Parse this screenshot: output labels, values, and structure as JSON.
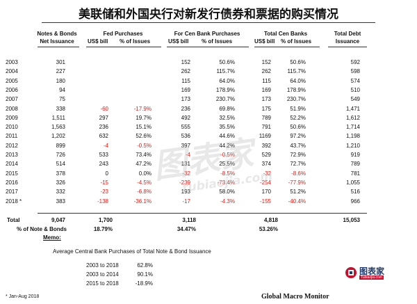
{
  "title": "美联储和外国央行对新发行债券和票据的购买情况",
  "headers": {
    "notes_bonds": "Notes & Bonds",
    "net_issuance": "Net Issuance",
    "fed_purchases": "Fed Purchases",
    "cb_purchases": "For Cen Bank Purchases",
    "total_cb": "Total Cen Banks",
    "total_debt": "Total Debt",
    "issuance": "Issuance",
    "usd_bill": "US$ bill",
    "pct_issues": "% of Issues"
  },
  "rows": [
    {
      "year": "2003",
      "net": "301",
      "fed_b": "",
      "fed_p": "",
      "cb_b": "152",
      "cb_p": "50.6%",
      "tot_b": "152",
      "tot_p": "50.6%",
      "debt": "592",
      "fed_neg": false,
      "cb_neg": false,
      "tot_neg": false
    },
    {
      "year": "2004",
      "net": "227",
      "fed_b": "",
      "fed_p": "",
      "cb_b": "262",
      "cb_p": "115.7%",
      "tot_b": "262",
      "tot_p": "115.7%",
      "debt": "598",
      "fed_neg": false,
      "cb_neg": false,
      "tot_neg": false
    },
    {
      "year": "2005",
      "net": "180",
      "fed_b": "",
      "fed_p": "",
      "cb_b": "115",
      "cb_p": "64.0%",
      "tot_b": "115",
      "tot_p": "64.0%",
      "debt": "574",
      "fed_neg": false,
      "cb_neg": false,
      "tot_neg": false
    },
    {
      "year": "2006",
      "net": "94",
      "fed_b": "",
      "fed_p": "",
      "cb_b": "169",
      "cb_p": "178.9%",
      "tot_b": "169",
      "tot_p": "178.9%",
      "debt": "510",
      "fed_neg": false,
      "cb_neg": false,
      "tot_neg": false
    },
    {
      "year": "2007",
      "net": "75",
      "fed_b": "",
      "fed_p": "",
      "cb_b": "173",
      "cb_p": "230.7%",
      "tot_b": "173",
      "tot_p": "230.7%",
      "debt": "549",
      "fed_neg": false,
      "cb_neg": false,
      "tot_neg": false
    },
    {
      "year": "2008",
      "net": "338",
      "fed_b": "-60",
      "fed_p": "-17.9%",
      "cb_b": "236",
      "cb_p": "69.8%",
      "tot_b": "175",
      "tot_p": "51.9%",
      "debt": "1,471",
      "fed_neg": true,
      "cb_neg": false,
      "tot_neg": false
    },
    {
      "year": "2009",
      "net": "1,511",
      "fed_b": "297",
      "fed_p": "19.7%",
      "cb_b": "492",
      "cb_p": "32.5%",
      "tot_b": "789",
      "tot_p": "52.2%",
      "debt": "1,612",
      "fed_neg": false,
      "cb_neg": false,
      "tot_neg": false
    },
    {
      "year": "2010",
      "net": "1,563",
      "fed_b": "236",
      "fed_p": "15.1%",
      "cb_b": "555",
      "cb_p": "35.5%",
      "tot_b": "791",
      "tot_p": "50.6%",
      "debt": "1,714",
      "fed_neg": false,
      "cb_neg": false,
      "tot_neg": false
    },
    {
      "year": "2011",
      "net": "1,202",
      "fed_b": "632",
      "fed_p": "52.6%",
      "cb_b": "536",
      "cb_p": "44.6%",
      "tot_b": "1169",
      "tot_p": "97.2%",
      "debt": "1,198",
      "fed_neg": false,
      "cb_neg": false,
      "tot_neg": false
    },
    {
      "year": "2012",
      "net": "899",
      "fed_b": "-4",
      "fed_p": "-0.5%",
      "cb_b": "397",
      "cb_p": "44.2%",
      "tot_b": "392",
      "tot_p": "43.7%",
      "debt": "1,210",
      "fed_neg": true,
      "cb_neg": false,
      "tot_neg": false
    },
    {
      "year": "2013",
      "net": "726",
      "fed_b": "533",
      "fed_p": "73.4%",
      "cb_b": "-4",
      "cb_p": "-0.5%",
      "tot_b": "529",
      "tot_p": "72.9%",
      "debt": "919",
      "fed_neg": false,
      "cb_neg": false,
      "tot_neg": false
    },
    {
      "year": "2014",
      "net": "514",
      "fed_b": "243",
      "fed_p": "47.2%",
      "cb_b": "131",
      "cb_p": "25.5%",
      "tot_b": "374",
      "tot_p": "72.7%",
      "debt": "789",
      "fed_neg": false,
      "cb_neg": false,
      "tot_neg": false
    },
    {
      "year": "2015",
      "net": "378",
      "fed_b": "0",
      "fed_p": "0.0%",
      "cb_b": "-32",
      "cb_p": "-8.5%",
      "tot_b": "-32",
      "tot_p": "-8.6%",
      "debt": "781",
      "fed_neg": false,
      "cb_neg": true,
      "tot_neg": true
    },
    {
      "year": "2016",
      "net": "326",
      "fed_b": "-15",
      "fed_p": "-4.5%",
      "cb_b": "-239",
      "cb_p": "-73.4%",
      "tot_b": "-254",
      "tot_p": "-77.9%",
      "debt": "1,055",
      "fed_neg": true,
      "cb_neg": true,
      "tot_neg": true
    },
    {
      "year": "2017",
      "net": "332",
      "fed_b": "-23",
      "fed_p": "-6.8%",
      "cb_b": "193",
      "cb_p": "58.0%",
      "tot_b": "170",
      "tot_p": "51.2%",
      "debt": "516",
      "fed_neg": true,
      "cb_neg": false,
      "tot_neg": false
    },
    {
      "year": "2018 *",
      "net": "383",
      "fed_b": "-138",
      "fed_p": "-36.1%",
      "cb_b": "-17",
      "cb_p": "-4.3%",
      "tot_b": "-155",
      "tot_p": "-40.4%",
      "debt": "966",
      "fed_neg": true,
      "cb_neg": true,
      "tot_neg": true
    }
  ],
  "total": {
    "label": "Total",
    "net": "9,047",
    "fed": "1,700",
    "cb": "3,118",
    "tot": "4,818",
    "debt": "15,053"
  },
  "pct_row": {
    "label": "% of Note & Bonds",
    "fed": "18.79%",
    "cb": "34.47%",
    "tot": "53.26%"
  },
  "memo": {
    "label": "Memo:",
    "title": "Average Central Bank Purchases of Total Note & Bond Issuance",
    "items": [
      {
        "period": "2003 to 2018",
        "value": "62.8%"
      },
      {
        "period": "2003 to 2014",
        "value": "90.1%"
      },
      {
        "period": "2015 to 2018",
        "value": "-18.9%"
      }
    ]
  },
  "watermark": {
    "cn": "图表家",
    "en": "tubiaojia.com"
  },
  "logo": {
    "text": "图表家",
    "sub": "Tubiaojia.com"
  },
  "footnote": "* Jan-Aug 2018",
  "source": "Global Macro Monitor",
  "colors": {
    "negative": "#e0201c",
    "logo_red": "#c8102e",
    "logo_navy": "#1f3a6e"
  }
}
